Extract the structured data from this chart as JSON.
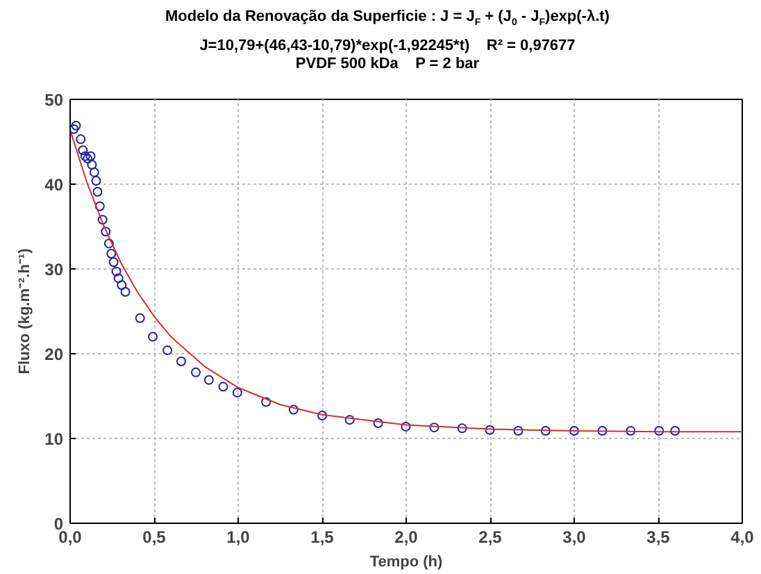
{
  "chart_data": {
    "type": "scatter",
    "title": "Modelo da Renovação da Superficie : J = J$_{F}$ + (J$_{0}$ - J$_{F}$)exp(-λ.t)",
    "subtitle": "J=10,79+(46,43-10,79)*exp(-1,92245*t)    R² = 0,97677\nPVDF 500 kDa    P = 2 bar",
    "xlabel": "Tempo (h)",
    "ylabel": "Fluxo (kg.m⁻².h⁻¹)",
    "xlim": [
      0,
      4
    ],
    "ylim": [
      0,
      50
    ],
    "xticks": [
      {
        "value": 0,
        "label": "0,0"
      },
      {
        "value": 0.5,
        "label": "0,5"
      },
      {
        "value": 1,
        "label": "1,0"
      },
      {
        "value": 1.5,
        "label": "1,5"
      },
      {
        "value": 2,
        "label": "2,0"
      },
      {
        "value": 2.5,
        "label": "2,5"
      },
      {
        "value": 3,
        "label": "3,0"
      },
      {
        "value": 3.5,
        "label": "3,5"
      },
      {
        "value": 4,
        "label": "4,0"
      }
    ],
    "yticks": [
      0,
      10,
      20,
      30,
      40,
      50
    ],
    "grid": true,
    "series": [
      {
        "marker": "circle",
        "color": "#2020a0",
        "x": [
          0.022,
          0.035,
          0.063,
          0.076,
          0.09,
          0.104,
          0.122,
          0.13,
          0.144,
          0.155,
          0.163,
          0.177,
          0.193,
          0.212,
          0.231,
          0.245,
          0.259,
          0.275,
          0.288,
          0.307,
          0.329,
          0.416,
          0.492,
          0.579,
          0.661,
          0.748,
          0.826,
          0.911,
          0.995,
          1.166,
          1.33,
          1.5,
          1.664,
          1.833,
          1.998,
          2.167,
          2.333,
          2.498,
          2.667,
          2.83,
          3.0,
          3.167,
          3.336,
          3.505,
          3.6
        ],
        "values": [
          46.5,
          46.9,
          45.3,
          44.0,
          43.3,
          43.0,
          43.3,
          42.3,
          41.4,
          40.4,
          39.1,
          37.4,
          35.8,
          34.4,
          33.0,
          31.8,
          30.8,
          29.7,
          28.9,
          28.1,
          27.3,
          24.2,
          22.0,
          20.4,
          19.1,
          17.8,
          16.9,
          16.1,
          15.4,
          14.3,
          13.4,
          12.7,
          12.2,
          11.8,
          11.4,
          11.3,
          11.2,
          11.0,
          10.9,
          10.9,
          10.9,
          10.9,
          10.9,
          10.9,
          10.9
        ]
      },
      {
        "type": "line",
        "color": "#d03030",
        "x": [
          0,
          0.1,
          0.2,
          0.3,
          0.4,
          0.5,
          0.6,
          0.8,
          1.0,
          1.25,
          1.5,
          2,
          2.5,
          3,
          3.5,
          4
        ],
        "values": [
          46.4,
          40.2,
          35.1,
          30.8,
          27.3,
          24.4,
          22.0,
          18.5,
          16.0,
          14.0,
          12.8,
          11.6,
          11.1,
          10.9,
          10.8,
          10.8
        ]
      }
    ]
  }
}
